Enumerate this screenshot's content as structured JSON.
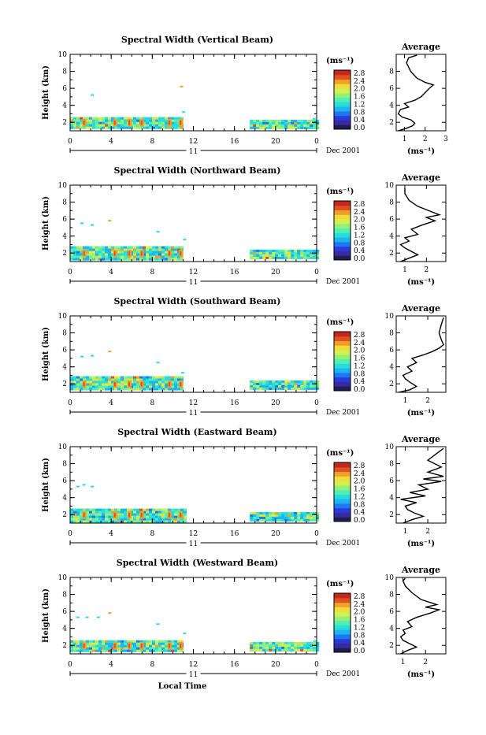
{
  "figure": {
    "x_label": "Local Time",
    "date_label": "Dec 2001",
    "day_label": "11",
    "colorbar_unit": "(ms⁻¹)",
    "avg_xlabel": "(ms⁻¹)",
    "avg_title": "Average",
    "colors": {
      "scale": [
        "#1e1e50",
        "#3a2aa0",
        "#2a3adc",
        "#1e78f0",
        "#1eb4f0",
        "#28dcdc",
        "#50f0b4",
        "#96f078",
        "#d2f050",
        "#f0dc3c",
        "#f0a028",
        "#e05020",
        "#c02820"
      ]
    }
  },
  "chart_data": [
    {
      "type": "heatmap",
      "title": "Spectral Width (Vertical Beam)",
      "ylabel": "Height (km)",
      "x_ticks": [
        "0",
        "4",
        "8",
        "12",
        "16",
        "20",
        "0"
      ],
      "y_ticks": [
        "10",
        "8",
        "6",
        "4",
        "2"
      ],
      "xlim": [
        0,
        24
      ],
      "ylim": [
        1,
        10
      ],
      "colorbar_ticks": [
        "2.8",
        "2.4",
        "2.0",
        "1.6",
        "1.2",
        "0.8",
        "0.4",
        "0.0"
      ],
      "data_blocks": [
        [
          0,
          11,
          1.3,
          2.6
        ],
        [
          17.5,
          24,
          1.3,
          2.3
        ]
      ],
      "sparse_points": [
        [
          2,
          5.3
        ],
        [
          10.7,
          6.3
        ],
        [
          10.9,
          3.3
        ],
        [
          23.6,
          2.5
        ]
      ],
      "avg": {
        "title": "Average",
        "x_ticks": [
          "1",
          "2",
          "3"
        ],
        "x_values": [
          1,
          2,
          3
        ],
        "xlim": [
          0.6,
          3
        ],
        "y_ticks": [
          "8",
          "6",
          "4",
          "2"
        ],
        "ylim": [
          1,
          10
        ],
        "profile": [
          [
            0.7,
            1.0
          ],
          [
            1.1,
            1.3
          ],
          [
            1.4,
            1.6
          ],
          [
            1.5,
            1.9
          ],
          [
            1.3,
            2.3
          ],
          [
            0.9,
            2.6
          ],
          [
            0.7,
            3.0
          ],
          [
            0.8,
            3.5
          ],
          [
            1.2,
            3.8
          ],
          [
            1.0,
            4.2
          ],
          [
            1.5,
            4.6
          ],
          [
            1.8,
            5.0
          ],
          [
            2.0,
            5.5
          ],
          [
            2.2,
            6.0
          ],
          [
            2.4,
            6.4
          ],
          [
            2.0,
            6.7
          ],
          [
            1.6,
            7.2
          ],
          [
            1.3,
            8.0
          ],
          [
            1.1,
            9.0
          ],
          [
            1.2,
            9.6
          ],
          [
            1.6,
            9.9
          ]
        ]
      }
    },
    {
      "type": "heatmap",
      "title": "Spectral Width (Northward Beam)",
      "ylabel": "Height (km)",
      "x_ticks": [
        "0",
        "4",
        "8",
        "12",
        "16",
        "20",
        "0"
      ],
      "y_ticks": [
        "10",
        "8",
        "6",
        "4",
        "2"
      ],
      "xlim": [
        0,
        24
      ],
      "ylim": [
        1,
        10
      ],
      "colorbar_ticks": [
        "2.8",
        "2.4",
        "2.0",
        "1.6",
        "1.2",
        "0.8",
        "0.4",
        "0.0"
      ],
      "data_blocks": [
        [
          0,
          11,
          1.3,
          2.8
        ],
        [
          17.5,
          24,
          1.3,
          2.4
        ]
      ],
      "sparse_points": [
        [
          1,
          5.6
        ],
        [
          2,
          5.4
        ],
        [
          3.7,
          5.9
        ],
        [
          8.4,
          4.6
        ],
        [
          11,
          3.7
        ]
      ],
      "avg": {
        "title": "Average",
        "x_ticks": [
          "1",
          "2"
        ],
        "x_values": [
          1,
          2
        ],
        "xlim": [
          0.6,
          2.9
        ],
        "y_ticks": [
          "10",
          "8",
          "6",
          "4",
          "2"
        ],
        "ylim": [
          1,
          10
        ],
        "profile": [
          [
            0.8,
            1.0
          ],
          [
            1.2,
            1.4
          ],
          [
            1.6,
            1.8
          ],
          [
            1.3,
            2.2
          ],
          [
            1.0,
            2.6
          ],
          [
            0.8,
            3.0
          ],
          [
            1.2,
            3.4
          ],
          [
            1.0,
            3.8
          ],
          [
            1.6,
            4.2
          ],
          [
            1.3,
            4.8
          ],
          [
            1.8,
            5.3
          ],
          [
            2.4,
            5.8
          ],
          [
            2.0,
            6.2
          ],
          [
            2.6,
            6.5
          ],
          [
            2.2,
            6.9
          ],
          [
            1.6,
            7.5
          ],
          [
            1.2,
            8.2
          ],
          [
            1.0,
            9.0
          ],
          [
            1.0,
            9.6
          ]
        ]
      }
    },
    {
      "type": "heatmap",
      "title": "Spectral Width (Southward Beam)",
      "ylabel": "Height (km)",
      "x_ticks": [
        "0",
        "4",
        "8",
        "12",
        "16",
        "20",
        "0"
      ],
      "y_ticks": [
        "10",
        "8",
        "6",
        "4",
        "2"
      ],
      "xlim": [
        0,
        24
      ],
      "ylim": [
        1,
        10
      ],
      "colorbar_ticks": [
        "2.8",
        "2.4",
        "2.0",
        "1.6",
        "1.2",
        "0.8",
        "0.4",
        "0.0"
      ],
      "data_blocks": [
        [
          0,
          11,
          1.3,
          2.9
        ],
        [
          17.5,
          24,
          1.3,
          2.4
        ]
      ],
      "sparse_points": [
        [
          1,
          5.3
        ],
        [
          2,
          5.4
        ],
        [
          3.7,
          5.9
        ],
        [
          8.4,
          4.6
        ],
        [
          10.8,
          3.4
        ]
      ],
      "avg": {
        "title": "Average",
        "x_ticks": [
          "1",
          "2"
        ],
        "x_values": [
          1,
          2
        ],
        "xlim": [
          0.6,
          2.8
        ],
        "y_ticks": [
          "10",
          "8",
          "6",
          "4",
          "2"
        ],
        "ylim": [
          1,
          10
        ],
        "profile": [
          [
            0.7,
            1.0
          ],
          [
            1.2,
            1.3
          ],
          [
            1.5,
            1.7
          ],
          [
            1.2,
            2.2
          ],
          [
            1.0,
            2.6
          ],
          [
            0.9,
            3.0
          ],
          [
            1.3,
            3.5
          ],
          [
            1.1,
            4.0
          ],
          [
            1.5,
            4.5
          ],
          [
            1.3,
            5.0
          ],
          [
            1.8,
            5.4
          ],
          [
            2.2,
            5.8
          ],
          [
            2.5,
            6.2
          ],
          [
            2.7,
            6.6
          ],
          [
            2.6,
            7.2
          ],
          [
            2.5,
            8.0
          ],
          [
            2.6,
            9.0
          ],
          [
            2.7,
            9.8
          ]
        ]
      }
    },
    {
      "type": "heatmap",
      "title": "Spectral Width (Eastward Beam)",
      "ylabel": "Height (km)",
      "x_ticks": [
        "0",
        "4",
        "8",
        "12",
        "16",
        "20",
        "0"
      ],
      "y_ticks": [
        "10",
        "8",
        "6",
        "4",
        "2"
      ],
      "xlim": [
        0,
        24
      ],
      "ylim": [
        1,
        10
      ],
      "colorbar_ticks": [
        "2.8",
        "2.4",
        "2.0",
        "1.6",
        "1.2",
        "0.8",
        "0.4",
        "0.0"
      ],
      "data_blocks": [
        [
          0,
          11.3,
          1.3,
          2.7
        ],
        [
          17.5,
          24,
          1.3,
          2.3
        ]
      ],
      "sparse_points": [
        [
          0.6,
          5.4
        ],
        [
          1.2,
          5.6
        ],
        [
          2,
          5.4
        ],
        [
          23.7,
          2.3
        ]
      ],
      "avg": {
        "title": "Average",
        "x_ticks": [
          "1",
          "2"
        ],
        "x_values": [
          1,
          2
        ],
        "xlim": [
          0.6,
          2.8
        ],
        "y_ticks": [
          "10",
          "8",
          "6",
          "4",
          "2"
        ],
        "ylim": [
          1,
          10
        ],
        "profile": [
          [
            0.9,
            1.0
          ],
          [
            1.3,
            1.4
          ],
          [
            1.8,
            1.8
          ],
          [
            1.4,
            2.2
          ],
          [
            1.1,
            2.6
          ],
          [
            1.0,
            3.0
          ],
          [
            1.5,
            3.4
          ],
          [
            0.8,
            3.8
          ],
          [
            1.9,
            4.2
          ],
          [
            1.2,
            4.6
          ],
          [
            2.0,
            5.0
          ],
          [
            1.6,
            5.5
          ],
          [
            2.6,
            5.9
          ],
          [
            1.8,
            6.2
          ],
          [
            2.7,
            6.5
          ],
          [
            2.0,
            7.0
          ],
          [
            2.6,
            7.6
          ],
          [
            2.0,
            8.4
          ],
          [
            2.4,
            9.2
          ],
          [
            2.7,
            9.8
          ]
        ]
      }
    },
    {
      "type": "heatmap",
      "title": "Spectral Width (Westward Beam)",
      "ylabel": "Height (km)",
      "x_ticks": [
        "0",
        "4",
        "8",
        "12",
        "16",
        "20",
        "0"
      ],
      "y_ticks": [
        "10",
        "8",
        "6",
        "4",
        "2"
      ],
      "xlim": [
        0,
        24
      ],
      "ylim": [
        1,
        10
      ],
      "colorbar_ticks": [
        "2.8",
        "2.4",
        "2.0",
        "1.6",
        "1.2",
        "0.8",
        "0.4",
        "0.0"
      ],
      "data_blocks": [
        [
          0,
          11,
          1.3,
          2.6
        ],
        [
          17.5,
          24,
          1.3,
          2.4
        ]
      ],
      "sparse_points": [
        [
          0.6,
          5.4
        ],
        [
          1.5,
          5.4
        ],
        [
          2.6,
          5.4
        ],
        [
          3.7,
          5.9
        ],
        [
          8.4,
          4.6
        ],
        [
          11,
          3.5
        ],
        [
          23.7,
          2.6
        ]
      ],
      "avg": {
        "title": "Average",
        "x_ticks": [
          "1",
          "2"
        ],
        "x_values": [
          1,
          2
        ],
        "xlim": [
          0.7,
          2.9
        ],
        "y_ticks": [
          "10",
          "8",
          "6",
          "4",
          "2"
        ],
        "ylim": [
          1,
          10
        ],
        "profile": [
          [
            0.9,
            1.0
          ],
          [
            1.2,
            1.4
          ],
          [
            1.6,
            1.8
          ],
          [
            1.3,
            2.2
          ],
          [
            1.0,
            2.6
          ],
          [
            0.9,
            3.0
          ],
          [
            1.1,
            3.4
          ],
          [
            1.0,
            3.8
          ],
          [
            1.4,
            4.2
          ],
          [
            1.2,
            4.8
          ],
          [
            1.6,
            5.3
          ],
          [
            2.2,
            5.8
          ],
          [
            2.6,
            6.2
          ],
          [
            2.0,
            6.5
          ],
          [
            2.5,
            6.8
          ],
          [
            1.8,
            7.4
          ],
          [
            1.4,
            8.2
          ],
          [
            1.1,
            9.0
          ],
          [
            1.0,
            9.6
          ],
          [
            1.1,
            9.9
          ]
        ]
      }
    }
  ]
}
